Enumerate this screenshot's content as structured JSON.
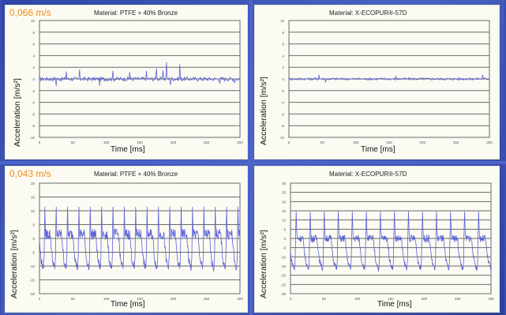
{
  "speeds": {
    "top": "0,066 m/s",
    "bottom": "0,043 m/s"
  },
  "panels": [
    {
      "material": "Material: PTFE + 40% Bronze",
      "ylabel": "Acceleration [m/s²]",
      "xlabel": "Time [ms]"
    },
    {
      "material": "Material: X-ECOPUR®-57D",
      "ylabel": "Acceleration [m/s²]",
      "xlabel": "Time [ms]"
    },
    {
      "material": "Material: PTFE + 40% Bronze",
      "ylabel": "Acceleration [m/s²]",
      "xlabel": "Time [ms]"
    },
    {
      "material": "Material: X-ECOPUR®-57D",
      "ylabel": "Acceleration [m/s²]",
      "xlabel": "Time [ms]"
    }
  ],
  "colors": {
    "background": "#3a4fb0",
    "panel": "#fbfbf3",
    "speed_text": "#f28a1c",
    "signal": "#5c63d6",
    "grid": "#6a6a6a"
  },
  "chart_data": [
    {
      "type": "line",
      "title": "Material: PTFE + 40% Bronze",
      "xlabel": "Time [ms]",
      "ylabel": "Acceleration [m/s²]",
      "xlim": [
        0,
        300
      ],
      "ylim": [
        -10,
        10
      ],
      "xticks": [
        0,
        50,
        100,
        150,
        200,
        250,
        300
      ],
      "yticks": [
        -10,
        -8,
        -6,
        -4,
        -2,
        0,
        2,
        4,
        6,
        8,
        10
      ],
      "grid": true,
      "signal": {
        "kind": "noise",
        "amplitude": 0.6,
        "spikes": [
          [
            25,
            -1.2
          ],
          [
            40,
            1.3
          ],
          [
            60,
            1.6
          ],
          [
            90,
            -1.2
          ],
          [
            110,
            1.4
          ],
          [
            135,
            1.2
          ],
          [
            160,
            1.4
          ],
          [
            175,
            1.8
          ],
          [
            185,
            1.5
          ],
          [
            190,
            2.9
          ],
          [
            196,
            -1.0
          ],
          [
            210,
            2.5
          ],
          [
            270,
            -0.8
          ],
          [
            292,
            -0.7
          ]
        ]
      }
    },
    {
      "type": "line",
      "title": "Material: X-ECOPUR®-57D",
      "xlabel": "Time [ms]",
      "ylabel": "Acceleration [m/s²]",
      "xlim": [
        0,
        300
      ],
      "ylim": [
        -10,
        10
      ],
      "xticks": [
        0,
        50,
        100,
        150,
        200,
        250,
        300
      ],
      "yticks": [
        -10,
        -8,
        -6,
        -4,
        -2,
        0,
        2,
        4,
        6,
        8,
        10
      ],
      "grid": true,
      "signal": {
        "kind": "noise",
        "amplitude": 0.35,
        "spikes": [
          [
            45,
            0.7
          ],
          [
            55,
            -0.6
          ],
          [
            160,
            0.5
          ],
          [
            290,
            0.7
          ]
        ]
      }
    },
    {
      "type": "line",
      "title": "Material: PTFE + 40% Bronze",
      "xlabel": "Time [ms]",
      "ylabel": "Acceleration [m/s²]",
      "xlim": [
        0,
        300
      ],
      "ylim": [
        -20,
        20
      ],
      "xticks": [
        0,
        50,
        100,
        150,
        200,
        250,
        300
      ],
      "yticks": [
        -20,
        -15,
        -10,
        -5,
        0,
        5,
        10,
        15,
        20
      ],
      "grid": true,
      "signal": {
        "kind": "periodic",
        "period": 17,
        "peak": 12,
        "trough": -11,
        "base": 1.5
      }
    },
    {
      "type": "line",
      "title": "Material: X-ECOPUR®-57D",
      "xlabel": "Time [ms]",
      "ylabel": "Acceleration [m/s²]",
      "xlim": [
        0,
        300
      ],
      "ylim": [
        -30,
        30
      ],
      "xticks": [
        0,
        50,
        100,
        150,
        200,
        250,
        300
      ],
      "yticks": [
        -30,
        -25,
        -20,
        -15,
        -10,
        -5,
        0,
        5,
        10,
        15,
        20,
        25,
        30
      ],
      "grid": true,
      "signal": {
        "kind": "periodic",
        "period": 21,
        "peak": 15,
        "trough": -17,
        "base": 0
      }
    }
  ]
}
